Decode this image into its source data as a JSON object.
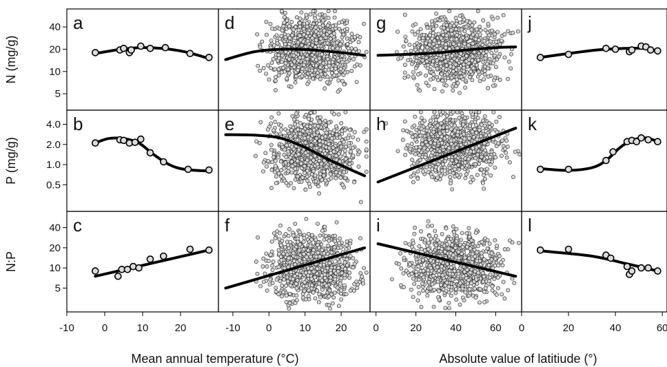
{
  "chart_data": {
    "type": "scatter",
    "y_rows": [
      {
        "label": "N (mg/g)",
        "scale": "log",
        "ylim": [
          3,
          70
        ],
        "ticks": [
          5,
          10,
          20,
          40
        ]
      },
      {
        "label": "P (mg/g)",
        "scale": "log",
        "ylim": [
          0.2,
          6.5
        ],
        "ticks": [
          0.5,
          1.0,
          2.0,
          4.0
        ]
      },
      {
        "label": "N:P",
        "scale": "log",
        "ylim": [
          2.2,
          70
        ],
        "ticks": [
          5,
          10,
          20,
          40
        ]
      }
    ],
    "columns": [
      {
        "xlim": [
          -10,
          30
        ],
        "ticks": [
          -10,
          0,
          10,
          20
        ],
        "binned": true
      },
      {
        "xlim": [
          -14,
          28
        ],
        "ticks": [
          -10,
          0,
          10,
          20
        ],
        "binned": false
      },
      {
        "xlim": [
          -3,
          73
        ],
        "ticks": [
          0,
          20,
          40,
          60
        ],
        "binned": false
      },
      {
        "xlim": [
          0,
          62
        ],
        "ticks": [
          0,
          20,
          40,
          60
        ],
        "binned": true
      }
    ],
    "x_titles": [
      {
        "text": "Mean annual temperature (°C)",
        "columns": [
          0,
          1
        ]
      },
      {
        "text": "Absolute value of latitiude (°)",
        "columns": [
          2,
          3
        ]
      }
    ],
    "panels": [
      {
        "id": "a",
        "row": 0,
        "col": 0,
        "points": [
          [
            -2.5,
            18
          ],
          [
            4,
            19.5
          ],
          [
            5,
            20.5
          ],
          [
            6.5,
            18
          ],
          [
            7,
            19.5
          ],
          [
            9.5,
            22
          ],
          [
            12,
            20.5
          ],
          [
            16,
            21
          ],
          [
            22.5,
            17.5
          ],
          [
            27.5,
            15.5
          ]
        ],
        "fit": [
          [
            -2.5,
            17.5
          ],
          [
            3,
            19.5
          ],
          [
            9,
            21
          ],
          [
            15,
            20.5
          ],
          [
            21,
            18.5
          ],
          [
            27.5,
            15
          ]
        ]
      },
      {
        "id": "b",
        "row": 1,
        "col": 0,
        "points": [
          [
            -2.5,
            2.1
          ],
          [
            4,
            2.35
          ],
          [
            5,
            2.3
          ],
          [
            6.5,
            2.1
          ],
          [
            8,
            2.15
          ],
          [
            9.5,
            2.4
          ],
          [
            12,
            1.5
          ],
          [
            15.5,
            1.1
          ],
          [
            22,
            0.85
          ],
          [
            27.5,
            0.83
          ]
        ],
        "fit": [
          [
            -2.5,
            2.1
          ],
          [
            1,
            2.45
          ],
          [
            5,
            2.45
          ],
          [
            9,
            2.1
          ],
          [
            13,
            1.4
          ],
          [
            17,
            1.0
          ],
          [
            21,
            0.85
          ],
          [
            27.5,
            0.8
          ]
        ]
      },
      {
        "id": "c",
        "row": 2,
        "col": 0,
        "points": [
          [
            -2.5,
            9
          ],
          [
            3.5,
            7.5
          ],
          [
            4.5,
            9.5
          ],
          [
            6,
            9.5
          ],
          [
            7.5,
            10.5
          ],
          [
            9,
            10
          ],
          [
            12,
            13.5
          ],
          [
            15.5,
            15
          ],
          [
            22.5,
            19
          ],
          [
            27.5,
            18.5
          ]
        ],
        "fit": [
          [
            -2.5,
            7.5
          ],
          [
            27.5,
            18.5
          ]
        ]
      },
      {
        "id": "d",
        "row": 0,
        "col": 1,
        "fit": [
          [
            -12,
            14.5
          ],
          [
            -4,
            18.5
          ],
          [
            4,
            20
          ],
          [
            12,
            19.5
          ],
          [
            20,
            18
          ],
          [
            26.5,
            16.5
          ]
        ],
        "scatter": {
          "n": 900,
          "x_center": 12,
          "x_spread": 8,
          "y_center": 20,
          "y_spread": 0.3
        }
      },
      {
        "id": "e",
        "row": 1,
        "col": 1,
        "fit": [
          [
            -12,
            2.8
          ],
          [
            -4,
            2.75
          ],
          [
            3,
            2.5
          ],
          [
            10,
            1.8
          ],
          [
            17,
            1.15
          ],
          [
            26.5,
            0.68
          ]
        ],
        "scatter": {
          "n": 900,
          "x_center": 12,
          "x_spread": 8,
          "y_center": 1.6,
          "y_spread": 0.35
        }
      },
      {
        "id": "f",
        "row": 2,
        "col": 1,
        "fit": [
          [
            -12,
            5
          ],
          [
            26.5,
            20
          ]
        ],
        "scatter": {
          "n": 900,
          "x_center": 12,
          "x_spread": 8,
          "y_center": 11,
          "y_spread": 0.35
        }
      },
      {
        "id": "g",
        "row": 0,
        "col": 2,
        "fit": [
          [
            1,
            16.5
          ],
          [
            15,
            17
          ],
          [
            30,
            17.8
          ],
          [
            45,
            19.5
          ],
          [
            60,
            21
          ],
          [
            70,
            21.5
          ]
        ],
        "scatter": {
          "n": 900,
          "x_center": 40,
          "x_spread": 16,
          "y_center": 19,
          "y_spread": 0.3
        }
      },
      {
        "id": "h",
        "row": 1,
        "col": 2,
        "fit": [
          [
            1,
            0.55
          ],
          [
            70,
            3.5
          ]
        ],
        "scatter": {
          "n": 900,
          "x_center": 40,
          "x_spread": 16,
          "y_center": 1.9,
          "y_spread": 0.33
        }
      },
      {
        "id": "i",
        "row": 2,
        "col": 2,
        "fit": [
          [
            1,
            23
          ],
          [
            70,
            7.5
          ]
        ],
        "scatter": {
          "n": 900,
          "x_center": 40,
          "x_spread": 16,
          "y_center": 11,
          "y_spread": 0.33
        }
      },
      {
        "id": "j",
        "row": 0,
        "col": 3,
        "points": [
          [
            8,
            15.5
          ],
          [
            20,
            17
          ],
          [
            36,
            20.5
          ],
          [
            40,
            20
          ],
          [
            46,
            18.5
          ],
          [
            47,
            19.5
          ],
          [
            51,
            22
          ],
          [
            53,
            21.5
          ],
          [
            55,
            19.5
          ],
          [
            58,
            19
          ]
        ],
        "fit": [
          [
            8,
            15.5
          ],
          [
            20,
            17.5
          ],
          [
            32,
            19.5
          ],
          [
            44,
            20.5
          ],
          [
            52,
            20.5
          ],
          [
            58,
            19
          ]
        ]
      },
      {
        "id": "k",
        "row": 1,
        "col": 3,
        "points": [
          [
            8,
            0.85
          ],
          [
            20,
            0.85
          ],
          [
            36,
            1.15
          ],
          [
            39,
            1.55
          ],
          [
            45,
            2.2
          ],
          [
            47,
            2.3
          ],
          [
            49,
            2.2
          ],
          [
            51,
            2.5
          ],
          [
            54,
            2.35
          ],
          [
            58,
            2.2
          ]
        ],
        "fit": [
          [
            8,
            0.87
          ],
          [
            20,
            0.82
          ],
          [
            30,
            0.9
          ],
          [
            36,
            1.15
          ],
          [
            42,
            1.8
          ],
          [
            47,
            2.3
          ],
          [
            53,
            2.5
          ],
          [
            58,
            2.2
          ]
        ]
      },
      {
        "id": "l",
        "row": 2,
        "col": 3,
        "points": [
          [
            8,
            18.5
          ],
          [
            20,
            19
          ],
          [
            36,
            15.5
          ],
          [
            38,
            14
          ],
          [
            45,
            10.5
          ],
          [
            46,
            8
          ],
          [
            47,
            9
          ],
          [
            51,
            10
          ],
          [
            54,
            10
          ],
          [
            58,
            9
          ]
        ],
        "fit": [
          [
            8,
            18
          ],
          [
            30,
            15
          ],
          [
            45,
            11.5
          ],
          [
            58,
            9
          ]
        ]
      }
    ]
  }
}
